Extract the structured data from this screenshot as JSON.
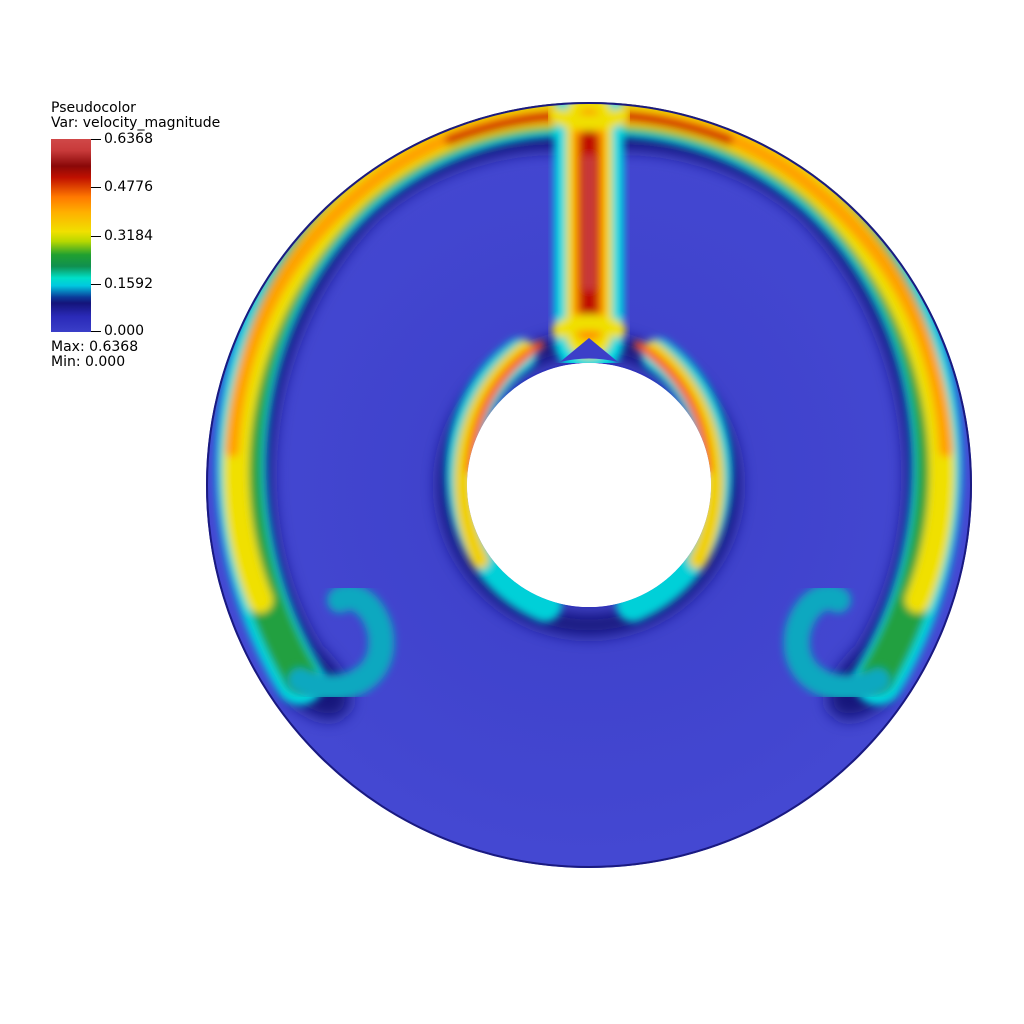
{
  "legend": {
    "title": "Pseudocolor",
    "var_label": "Var:",
    "var_name": "velocity_magnitude",
    "max_label": "Max:",
    "max_value": "0.6368",
    "min_label": "Min:",
    "min_value": "0.000",
    "ticks": [
      "0.6368",
      "0.4776",
      "0.3184",
      "0.1592",
      "0.000"
    ]
  },
  "colors": {
    "background": "#ffffff",
    "low": "#3f44cf",
    "high": "#c83a3a"
  }
}
